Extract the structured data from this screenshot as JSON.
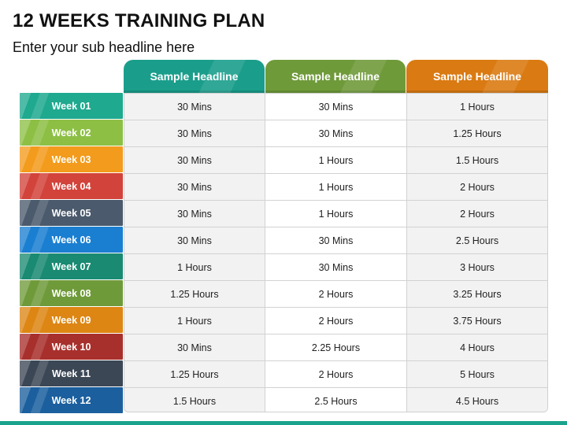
{
  "title": "12 WEEKS TRAINING PLAN",
  "subtitle": "Enter your sub headline here",
  "columns": [
    {
      "label": "Sample Headline",
      "color": "#1a9e8b"
    },
    {
      "label": "Sample Headline",
      "color": "#6f9a3a"
    },
    {
      "label": "Sample Headline",
      "color": "#da7a12"
    }
  ],
  "rows": [
    {
      "week": "Week 01",
      "color": "#1fa98f",
      "values": [
        "30 Mins",
        "30 Mins",
        "1 Hours"
      ]
    },
    {
      "week": "Week 02",
      "color": "#8dbf45",
      "values": [
        "30 Mins",
        "30 Mins",
        "1.25 Hours"
      ]
    },
    {
      "week": "Week 03",
      "color": "#f39b1c",
      "values": [
        "30 Mins",
        "1 Hours",
        "1.5 Hours"
      ]
    },
    {
      "week": "Week 04",
      "color": "#d2433b",
      "values": [
        "30 Mins",
        "1 Hours",
        "2 Hours"
      ]
    },
    {
      "week": "Week 05",
      "color": "#4b5a6c",
      "values": [
        "30 Mins",
        "1 Hours",
        "2 Hours"
      ]
    },
    {
      "week": "Week 06",
      "color": "#1b7fd1",
      "values": [
        "30 Mins",
        "30 Mins",
        "2.5 Hours"
      ]
    },
    {
      "week": "Week 07",
      "color": "#1a8a72",
      "values": [
        "1 Hours",
        "30 Mins",
        "3 Hours"
      ]
    },
    {
      "week": "Week 08",
      "color": "#6f9a3a",
      "values": [
        "1.25 Hours",
        "2 Hours",
        "3.25 Hours"
      ]
    },
    {
      "week": "Week 09",
      "color": "#dd8614",
      "values": [
        "1 Hours",
        "2 Hours",
        "3.75 Hours"
      ]
    },
    {
      "week": "Week 10",
      "color": "#a8302c",
      "values": [
        "30 Mins",
        "2.25 Hours",
        "4 Hours"
      ]
    },
    {
      "week": "Week 11",
      "color": "#3c4756",
      "values": [
        "1.25 Hours",
        "2 Hours",
        "5 Hours"
      ]
    },
    {
      "week": "Week 12",
      "color": "#1b5f9e",
      "values": [
        "1.5 Hours",
        "2.5 Hours",
        "4.5 Hours"
      ]
    }
  ],
  "accent_color": "#1aa38c"
}
